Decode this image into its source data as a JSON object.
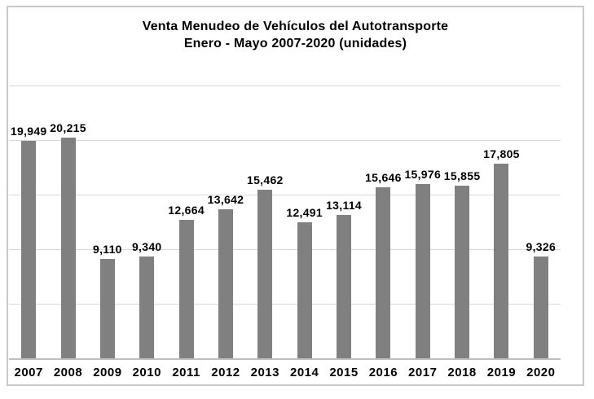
{
  "chart": {
    "title_line1": "Venta Menudeo de Vehículos del Autotransporte",
    "title_line2": "Enero - Mayo 2007-2020 (unidades)"
  },
  "chart_data": {
    "type": "bar",
    "title": "Venta Menudeo de Vehículos del Autotransporte Enero - Mayo 2007-2020 (unidades)",
    "categories": [
      "2007",
      "2008",
      "2009",
      "2010",
      "2011",
      "2012",
      "2013",
      "2014",
      "2015",
      "2016",
      "2017",
      "2018",
      "2019",
      "2020"
    ],
    "values": [
      19949,
      20215,
      9110,
      9340,
      12664,
      13642,
      15462,
      12491,
      13114,
      15646,
      15976,
      15855,
      17805,
      9326
    ],
    "value_labels": [
      "19,949",
      "20,215",
      "9,110",
      "9,340",
      "12,664",
      "13,642",
      "15,462",
      "12,491",
      "13,114",
      "15,646",
      "15,976",
      "15,855",
      "17,805",
      "9,326"
    ],
    "xlabel": "",
    "ylabel": "",
    "ylim": [
      0,
      25000
    ],
    "gridline_interval": 5000,
    "grid": true,
    "legend": false,
    "y_tick_labels_visible": false,
    "data_labels_visible": true,
    "bar_color": "#808080",
    "gridline_color": "#d9d9d9",
    "axis_color": "#bfbfbf",
    "border_color": "#c9c9c9",
    "text_color": "#000000"
  }
}
